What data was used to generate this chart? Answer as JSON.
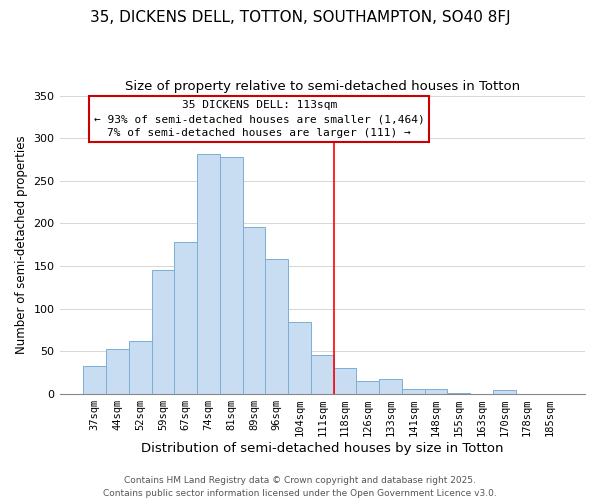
{
  "title": "35, DICKENS DELL, TOTTON, SOUTHAMPTON, SO40 8FJ",
  "subtitle": "Size of property relative to semi-detached houses in Totton",
  "xlabel": "Distribution of semi-detached houses by size in Totton",
  "ylabel": "Number of semi-detached properties",
  "bar_labels": [
    "37sqm",
    "44sqm",
    "52sqm",
    "59sqm",
    "67sqm",
    "74sqm",
    "81sqm",
    "89sqm",
    "96sqm",
    "104sqm",
    "111sqm",
    "118sqm",
    "126sqm",
    "133sqm",
    "141sqm",
    "148sqm",
    "155sqm",
    "163sqm",
    "170sqm",
    "178sqm",
    "185sqm"
  ],
  "bar_values": [
    33,
    53,
    62,
    145,
    178,
    281,
    278,
    196,
    158,
    84,
    46,
    31,
    15,
    18,
    6,
    6,
    1,
    0,
    5,
    0,
    0
  ],
  "bar_color": "#c9ddf2",
  "bar_edge_color": "#7aafd6",
  "grid_color": "#d0d0d0",
  "vline_x": 10.5,
  "vline_color": "red",
  "annotation_title": "35 DICKENS DELL: 113sqm",
  "annotation_line1": "← 93% of semi-detached houses are smaller (1,464)",
  "annotation_line2": "7% of semi-detached houses are larger (111) →",
  "annotation_box_color": "white",
  "annotation_box_edge": "#cc0000",
  "ylim": [
    0,
    350
  ],
  "yticks": [
    0,
    50,
    100,
    150,
    200,
    250,
    300,
    350
  ],
  "footer1": "Contains HM Land Registry data © Crown copyright and database right 2025.",
  "footer2": "Contains public sector information licensed under the Open Government Licence v3.0.",
  "title_fontsize": 11,
  "subtitle_fontsize": 9.5,
  "xlabel_fontsize": 9.5,
  "ylabel_fontsize": 8.5,
  "tick_fontsize": 7.5,
  "annotation_title_fontsize": 8.5,
  "annotation_fontsize": 8.0,
  "footer_fontsize": 6.5
}
